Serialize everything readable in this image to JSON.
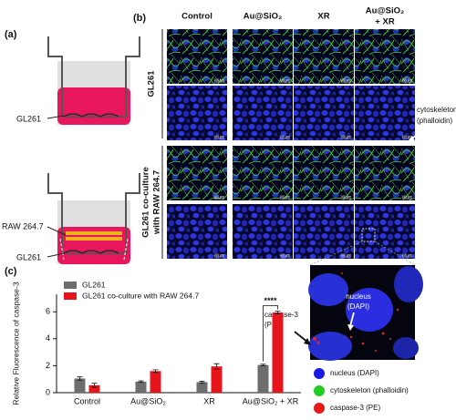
{
  "figure": {
    "panel_labels": [
      "(a)",
      "(b)",
      "(c)"
    ],
    "panel_a": {
      "labels": [
        "GL261",
        "RAW 264.7",
        "GL261"
      ]
    },
    "panel_b": {
      "column_headers": [
        [
          "Control"
        ],
        [
          "Au@SiO₂"
        ],
        [
          "XR"
        ],
        [
          "Au@SiO₂",
          "+ XR"
        ]
      ],
      "row_labels": [
        [
          "GL261"
        ],
        [
          "GL261 co-culture",
          "with RAW 264.7"
        ]
      ],
      "scale_bar": "100 μm",
      "annotation": [
        "cytoskeleton",
        "(phalloidin)"
      ],
      "inset_nucleus": [
        "nucleus",
        "(DAPI)"
      ],
      "inset_caspase": [
        "caspase-3",
        "(PE)"
      ],
      "legend": [
        {
          "label": "nucleus (DAPI)",
          "color": "#1a1ae6"
        },
        {
          "label": "cytoskeleton (phalloidin)",
          "color": "#22cc22"
        },
        {
          "label": "caspase-3 (PE)",
          "color": "#e81818"
        }
      ]
    }
  },
  "chart_data": {
    "type": "bar",
    "y_label": "Relative Fluorescence of caspase-3",
    "categories": [
      "Control",
      "Au@SiO₂",
      "XR",
      "Au@SiO₂ + XR"
    ],
    "series": [
      {
        "name": "GL261",
        "color": "#6d6d6d",
        "values": [
          1.05,
          0.82,
          0.78,
          2.05
        ],
        "errors": [
          0.12,
          0.06,
          0.06,
          0.06
        ]
      },
      {
        "name": "GL261 co-culture with RAW 264.7",
        "color": "#e8141b",
        "values": [
          0.55,
          1.6,
          1.95,
          5.95
        ],
        "errors": [
          0.15,
          0.1,
          0.2,
          0.1
        ]
      }
    ],
    "significance": "****",
    "ylim": [
      0,
      7.3
    ],
    "yticks": [
      0,
      2,
      4,
      6
    ],
    "grid": false
  }
}
